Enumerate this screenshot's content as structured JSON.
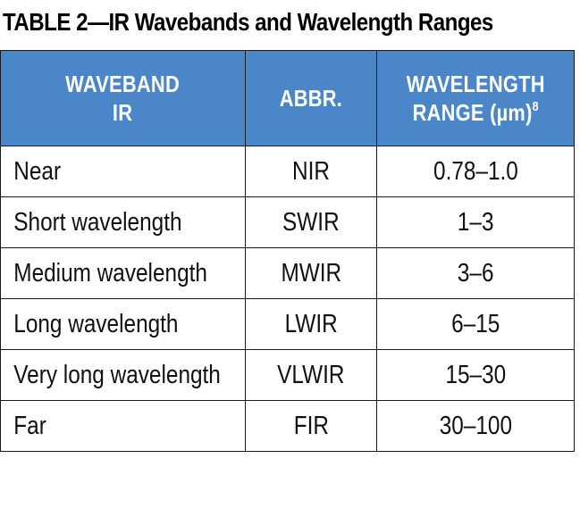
{
  "table": {
    "title": "TABLE 2—IR Wavebands and Wavelength Ranges",
    "headers": {
      "waveband_line1": "WAVEBAND",
      "waveband_line2": "IR",
      "abbr": "ABBR.",
      "range_line1": "WAVELENGTH",
      "range_line2": "RANGE (µm)",
      "range_footnote": "8"
    },
    "rows": [
      {
        "waveband": "Near",
        "abbr": "NIR",
        "range": "0.78–1.0"
      },
      {
        "waveband": "Short wavelength",
        "abbr": "SWIR",
        "range": "1–3"
      },
      {
        "waveband": "Medium wavelength",
        "abbr": "MWIR",
        "range": "3–6"
      },
      {
        "waveband": "Long wavelength",
        "abbr": "LWIR",
        "range": "6–15"
      },
      {
        "waveband": "Very long wavelength",
        "abbr": "VLWIR",
        "range": "15–30"
      },
      {
        "waveband": "Far",
        "abbr": "FIR",
        "range": "30–100"
      }
    ],
    "header_color": "#4a86c8",
    "header_text_color": "#ffffff",
    "border_color": "#1a1a1a"
  }
}
